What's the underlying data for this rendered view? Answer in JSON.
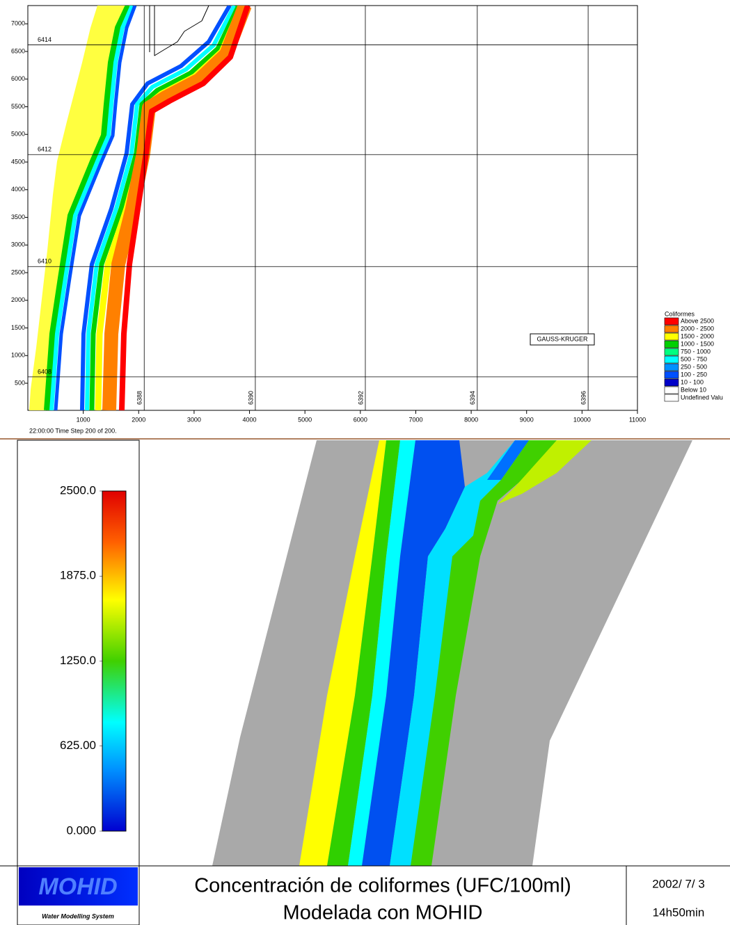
{
  "top_map": {
    "xlim": [
      0,
      11000
    ],
    "ylim": [
      10,
      7330
    ],
    "xticks": [
      1000,
      2000,
      3000,
      4000,
      5000,
      6000,
      7000,
      8000,
      9000,
      10000,
      11000
    ],
    "yticks": [
      500,
      1000,
      1500,
      2000,
      2500,
      3000,
      3500,
      4000,
      4500,
      5000,
      5500,
      6000,
      6500,
      7000
    ],
    "grid_step": 500,
    "gk_horizontal": [
      {
        "at": 6620,
        "label": "6414"
      },
      {
        "at": 4635,
        "label": "6412"
      },
      {
        "at": 2610,
        "label": "6410"
      },
      {
        "at": 615,
        "label": "6408"
      }
    ],
    "gk_vertical": [
      {
        "at": 2100,
        "label": "6388"
      },
      {
        "at": 4105,
        "label": "6390"
      },
      {
        "at": 6090,
        "label": "6392"
      },
      {
        "at": 8110,
        "label": "6394"
      },
      {
        "at": 10110,
        "label": "6396"
      }
    ],
    "projection_label": "GAUSS-KRUGER",
    "time_label": "22:00:00 Time Step 200 of 200.",
    "legend": {
      "title": "Coliformes",
      "entries": [
        {
          "label": "Above 2500",
          "color": "#ff0000"
        },
        {
          "label": "2000 - 2500",
          "color": "#ff8000"
        },
        {
          "label": "1500 - 2000",
          "color": "#ffff00"
        },
        {
          "label": "1000 - 1500",
          "color": "#00d000"
        },
        {
          "label": "750 - 1000",
          "color": "#00ff80"
        },
        {
          "label": "500 - 750",
          "color": "#00ffff"
        },
        {
          "label": "250 - 500",
          "color": "#0090ff"
        },
        {
          "label": "100 - 250",
          "color": "#0050ff"
        },
        {
          "label": "10 - 100",
          "color": "#0000c8"
        },
        {
          "label": "Below 10",
          "color": "#ffffff"
        },
        {
          "label": "Undefined Valu",
          "color": "#ffffff"
        }
      ]
    }
  },
  "bottom_map": {
    "colorbar": {
      "range": [
        0,
        2500
      ],
      "ticks": [
        {
          "value": 2500,
          "label": "2500.0"
        },
        {
          "value": 1875,
          "label": "1875.0"
        },
        {
          "value": 1250,
          "label": "1250.0"
        },
        {
          "value": 625,
          "label": "625.00"
        },
        {
          "value": 0,
          "label": "0.000"
        }
      ]
    },
    "logo": "MOHID",
    "logo_subtitle": "Water Modelling System",
    "title_line1": "Concentración de coliformes (UFC/100ml)",
    "title_line2": "Modelada con MOHID",
    "date": "2002/ 7/ 3",
    "time": "14h50min"
  }
}
